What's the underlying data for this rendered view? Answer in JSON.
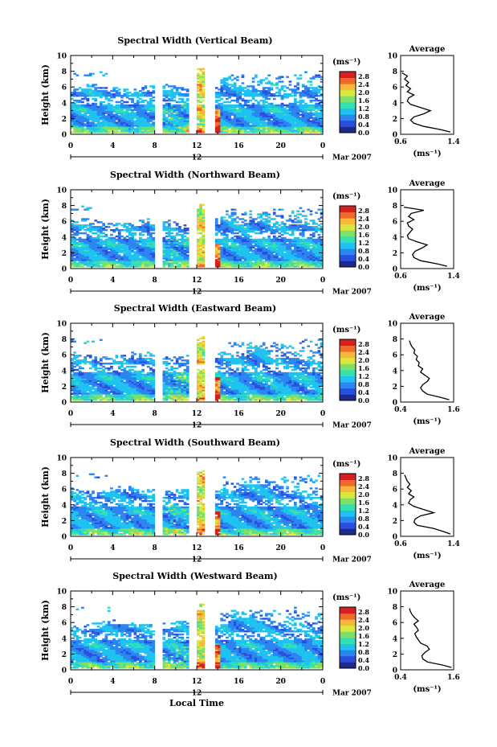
{
  "common": {
    "cbar_unit_label": "(ms⁻¹)",
    "cbar_ticks": [
      "2.8",
      "2.4",
      "2.0",
      "1.6",
      "1.2",
      "0.8",
      "0.4",
      "0.0"
    ],
    "ylabel": "Height (km)",
    "y_ticks": [
      "0",
      "2",
      "4",
      "6",
      "8",
      "10"
    ],
    "x_ticks": [
      "0",
      "4",
      "8",
      "12",
      "16",
      "20",
      "0"
    ],
    "date_tick": "12",
    "date_label": "Mar 2007",
    "avg_title": "Average",
    "avg_xlabel": "(ms⁻¹)",
    "avg_y_ticks": [
      "0",
      "2",
      "4",
      "6",
      "8",
      "10"
    ],
    "xlabel": "Local Time"
  },
  "colors": [
    "#1e2b8c",
    "#2a4ee0",
    "#2c86f0",
    "#1fc2f0",
    "#32e0b0",
    "#7de06a",
    "#d8e83c",
    "#f8b83a",
    "#f26a2a",
    "#d42020"
  ],
  "chart_data": [
    {
      "type": "heatmap",
      "title": "Spectral Width (Vertical Beam)",
      "xlim": [
        0,
        24
      ],
      "ylim": [
        0,
        10
      ],
      "clim": [
        0.0,
        2.8
      ],
      "data_gaps_hours": [
        [
          7.8,
          8.6
        ],
        [
          11.2,
          11.8
        ],
        [
          12.6,
          13.6
        ]
      ],
      "profile": {
        "xlim": [
          0.6,
          1.4
        ],
        "xticks": [
          "0.6",
          "1.4"
        ],
        "heights": [
          0.3,
          0.6,
          1.0,
          1.4,
          1.8,
          2.2,
          2.6,
          3.0,
          3.4,
          3.8,
          4.2,
          4.6,
          5.0,
          5.4,
          5.8,
          6.2,
          6.6,
          7.0,
          7.4,
          7.8
        ],
        "values": [
          1.35,
          1.2,
          0.95,
          0.8,
          0.75,
          0.8,
          0.95,
          1.05,
          0.9,
          0.75,
          0.7,
          0.72,
          0.8,
          0.7,
          0.75,
          0.68,
          0.72,
          0.66,
          0.7,
          0.62
        ]
      }
    },
    {
      "type": "heatmap",
      "title": "Spectral Width (Northward Beam)",
      "xlim": [
        0,
        24
      ],
      "ylim": [
        0,
        10
      ],
      "clim": [
        0.0,
        2.8
      ],
      "data_gaps_hours": [
        [
          7.8,
          8.6
        ],
        [
          11.2,
          11.8
        ],
        [
          12.6,
          13.6
        ]
      ],
      "profile": {
        "xlim": [
          0.6,
          1.4
        ],
        "xticks": [
          "0.6",
          "1.4"
        ],
        "heights": [
          0.3,
          0.6,
          1.0,
          1.4,
          1.8,
          2.2,
          2.6,
          3.0,
          3.4,
          3.8,
          4.2,
          4.6,
          5.0,
          5.4,
          5.8,
          6.2,
          6.6,
          7.0,
          7.4,
          7.8
        ],
        "values": [
          1.3,
          1.15,
          0.9,
          0.8,
          0.78,
          0.82,
          0.92,
          1.0,
          0.85,
          0.72,
          0.7,
          0.74,
          0.78,
          0.72,
          0.7,
          0.8,
          0.72,
          0.76,
          0.95,
          0.65
        ]
      }
    },
    {
      "type": "heatmap",
      "title": "Spectral Width (Eastward Beam)",
      "xlim": [
        0,
        24
      ],
      "ylim": [
        0,
        10
      ],
      "clim": [
        0.0,
        2.8
      ],
      "data_gaps_hours": [
        [
          7.8,
          8.6
        ],
        [
          11.2,
          11.8
        ],
        [
          12.6,
          13.6
        ]
      ],
      "profile": {
        "xlim": [
          0.4,
          1.6
        ],
        "xticks": [
          "0.4",
          "1.6"
        ],
        "heights": [
          0.3,
          0.6,
          1.0,
          1.4,
          1.8,
          2.2,
          2.6,
          3.0,
          3.4,
          3.8,
          4.2,
          4.6,
          5.0,
          5.4,
          5.8,
          6.2,
          6.6,
          7.0,
          7.4,
          7.8
        ],
        "values": [
          1.5,
          1.3,
          1.0,
          0.9,
          0.85,
          0.9,
          1.0,
          1.05,
          0.95,
          0.85,
          0.9,
          0.8,
          0.82,
          0.75,
          0.78,
          0.7,
          0.72,
          0.66,
          0.62,
          0.6
        ]
      }
    },
    {
      "type": "heatmap",
      "title": "Spectral Width (Southward Beam)",
      "xlim": [
        0,
        24
      ],
      "ylim": [
        0,
        10
      ],
      "clim": [
        0.0,
        2.8
      ],
      "data_gaps_hours": [
        [
          7.8,
          8.6
        ],
        [
          11.2,
          11.8
        ],
        [
          12.6,
          13.6
        ]
      ],
      "profile": {
        "xlim": [
          0.6,
          1.4
        ],
        "xticks": [
          "0.6",
          "1.4"
        ],
        "heights": [
          0.3,
          0.6,
          1.0,
          1.4,
          1.8,
          2.2,
          2.6,
          3.0,
          3.4,
          3.8,
          4.2,
          4.6,
          5.0,
          5.4,
          5.8,
          6.2,
          6.6,
          7.0,
          7.4,
          7.8
        ],
        "values": [
          1.35,
          1.25,
          1.1,
          0.85,
          0.8,
          0.82,
          0.9,
          1.1,
          0.95,
          0.8,
          0.72,
          0.74,
          0.8,
          0.72,
          0.76,
          0.7,
          0.74,
          0.7,
          0.68,
          0.66
        ]
      }
    },
    {
      "type": "heatmap",
      "title": "Spectral Width (Westward Beam)",
      "xlim": [
        0,
        24
      ],
      "ylim": [
        0,
        10
      ],
      "clim": [
        0.0,
        2.8
      ],
      "data_gaps_hours": [
        [
          7.8,
          8.6
        ],
        [
          11.2,
          11.8
        ],
        [
          12.6,
          13.6
        ]
      ],
      "profile": {
        "xlim": [
          0.4,
          1.6
        ],
        "xticks": [
          "0.4",
          "1.6"
        ],
        "heights": [
          0.3,
          0.6,
          1.0,
          1.4,
          1.8,
          2.2,
          2.6,
          3.0,
          3.4,
          3.8,
          4.2,
          4.6,
          5.0,
          5.4,
          5.8,
          6.2,
          6.6,
          7.0,
          7.4,
          7.8
        ],
        "values": [
          1.55,
          1.35,
          1.0,
          0.9,
          0.88,
          0.95,
          1.05,
          1.0,
          0.85,
          0.8,
          0.75,
          0.72,
          0.8,
          0.76,
          0.7,
          0.8,
          0.72,
          0.66,
          0.62,
          0.6
        ]
      }
    }
  ]
}
